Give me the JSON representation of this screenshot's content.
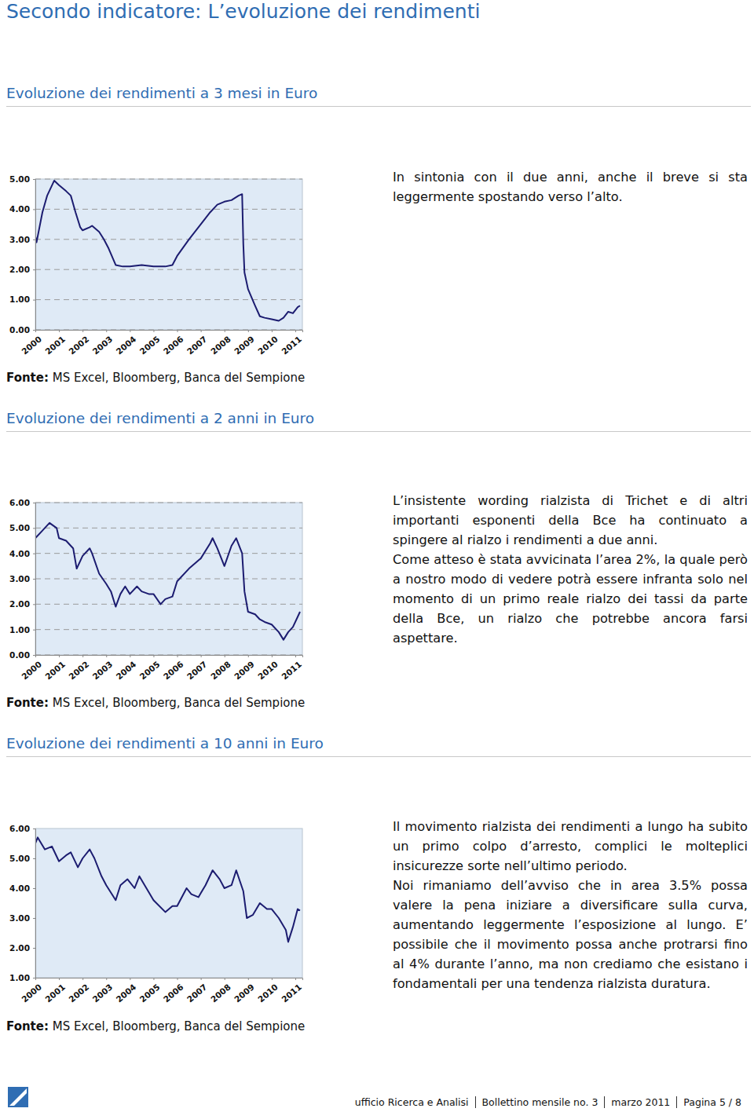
{
  "document": {
    "title": "Secondo indicatore: L’evoluzione dei rendimenti",
    "footer": [
      "ufficio Ricerca e Analisi",
      "Bollettino mensile no. 3",
      "marzo 2011",
      "Pagina 5 / 8"
    ]
  },
  "chart_data": [
    {
      "type": "line",
      "title": "Evoluzione dei rendimenti a 3 mesi in Euro",
      "source_label": "Fonte:",
      "source": "MS Excel, Bloomberg, Banca del Sempione",
      "commentary": [
        "In sintonia con il due anni, anche il breve si sta leggermente spostando verso l’alto."
      ],
      "color": "#1c1c70",
      "grid": true,
      "x": [
        2000.0,
        2000.05,
        2000.3,
        2000.5,
        2000.8,
        2001.0,
        2001.3,
        2001.5,
        2001.7,
        2001.9,
        2002.0,
        2002.3,
        2002.4,
        2002.7,
        2002.9,
        2003.1,
        2003.4,
        2003.7,
        2004.0,
        2004.5,
        2005.0,
        2005.5,
        2005.8,
        2006.0,
        2006.5,
        2007.0,
        2007.4,
        2007.7,
        2008.0,
        2008.3,
        2008.6,
        2008.75,
        2008.8,
        2008.85,
        2009.0,
        2009.3,
        2009.5,
        2009.7,
        2010.0,
        2010.3,
        2010.5,
        2010.7,
        2010.9,
        2011.1,
        2011.2
      ],
      "values": [
        3.1,
        2.9,
        3.9,
        4.45,
        4.95,
        4.8,
        4.6,
        4.45,
        3.9,
        3.4,
        3.3,
        3.4,
        3.45,
        3.25,
        3.0,
        2.7,
        2.15,
        2.1,
        2.1,
        2.15,
        2.1,
        2.1,
        2.15,
        2.45,
        3.0,
        3.5,
        3.9,
        4.15,
        4.25,
        4.3,
        4.45,
        4.5,
        2.85,
        1.9,
        1.35,
        0.8,
        0.45,
        0.4,
        0.35,
        0.3,
        0.4,
        0.6,
        0.55,
        0.75,
        0.8
      ],
      "xlim": [
        2000,
        2011.3
      ],
      "xticks": [
        2000,
        2001,
        2002,
        2003,
        2004,
        2005,
        2006,
        2007,
        2008,
        2009,
        2010,
        2011
      ],
      "ylim": [
        0,
        5
      ],
      "yticks": [
        {
          "value": 0,
          "label": "0.00"
        },
        {
          "value": 1,
          "label": "1.00"
        },
        {
          "value": 2,
          "label": "2.00"
        },
        {
          "value": 3,
          "label": "3.00"
        },
        {
          "value": 4,
          "label": "4.00"
        },
        {
          "value": 5,
          "label": "5.00"
        }
      ]
    },
    {
      "type": "line",
      "title": "Evoluzione dei rendimenti a 2 anni in Euro",
      "source_label": "Fonte:",
      "source": "MS Excel, Bloomberg, Banca del Sempione",
      "commentary": [
        "L’insistente wording rialzista di Trichet e di altri importanti esponenti della Bce ha continuato a spingere al rialzo i rendimenti a due anni.",
        "Come atteso è stata avvicinata l’area 2%, la quale però a nostro modo di vedere potrà essere infranta solo nel momento di un primo reale rialzo dei tassi da parte della Bce, un rialzo che potrebbe ancora farsi aspettare."
      ],
      "color": "#1c1c70",
      "grid": true,
      "x": [
        2000.0,
        2000.3,
        2000.6,
        2000.9,
        2001.0,
        2001.3,
        2001.6,
        2001.75,
        2002.0,
        2002.3,
        2002.4,
        2002.7,
        2003.0,
        2003.2,
        2003.4,
        2003.6,
        2003.8,
        2004.0,
        2004.3,
        2004.5,
        2004.8,
        2005.0,
        2005.3,
        2005.5,
        2005.8,
        2006.0,
        2006.5,
        2007.0,
        2007.4,
        2007.5,
        2007.7,
        2008.0,
        2008.3,
        2008.5,
        2008.75,
        2008.85,
        2009.0,
        2009.3,
        2009.5,
        2009.7,
        2010.0,
        2010.3,
        2010.5,
        2010.7,
        2010.9,
        2011.1,
        2011.2
      ],
      "values": [
        4.6,
        4.9,
        5.2,
        5.0,
        4.6,
        4.5,
        4.2,
        3.4,
        3.9,
        4.2,
        4.0,
        3.2,
        2.8,
        2.5,
        1.9,
        2.4,
        2.7,
        2.4,
        2.7,
        2.5,
        2.4,
        2.4,
        2.0,
        2.2,
        2.3,
        2.9,
        3.4,
        3.8,
        4.4,
        4.6,
        4.2,
        3.5,
        4.3,
        4.6,
        4.0,
        2.5,
        1.7,
        1.6,
        1.4,
        1.3,
        1.2,
        0.9,
        0.6,
        0.9,
        1.1,
        1.5,
        1.7
      ],
      "xlim": [
        2000,
        2011.3
      ],
      "xticks": [
        2000,
        2001,
        2002,
        2003,
        2004,
        2005,
        2006,
        2007,
        2008,
        2009,
        2010,
        2011
      ],
      "ylim": [
        0,
        6
      ],
      "yticks": [
        {
          "value": 0,
          "label": "0.00"
        },
        {
          "value": 1,
          "label": "1.00"
        },
        {
          "value": 2,
          "label": "2.00"
        },
        {
          "value": 3,
          "label": "3.00"
        },
        {
          "value": 4,
          "label": "4.00"
        },
        {
          "value": 5,
          "label": "5.00"
        },
        {
          "value": 6,
          "label": "6.00"
        }
      ]
    },
    {
      "type": "line",
      "title": "Evoluzione dei rendimenti a 10 anni in Euro",
      "source_label": "Fonte:",
      "source": "MS Excel, Bloomberg, Banca del Sempione",
      "commentary": [
        "Il movimento rialzista dei rendimenti a lungo ha subito un primo colpo d’arresto, complici le molteplici insicurezze sorte nell’ultimo periodo.",
        "Noi rimaniamo dell’avviso che in area 3.5% possa valere la pena iniziare a diversificare sulla curva, aumentando leggermente l’esposizione al lungo. E’ possibile che il movimento possa anche protrarsi fino al 4% durante l’anno, ma non crediamo che esistano i fondamentali per una tendenza rialzista duratura."
      ],
      "color": "#1c1c70",
      "grid": false,
      "x": [
        2000.0,
        2000.1,
        2000.4,
        2000.7,
        2001.0,
        2001.3,
        2001.5,
        2001.8,
        2002.0,
        2002.3,
        2002.5,
        2002.8,
        2003.0,
        2003.4,
        2003.6,
        2003.9,
        2004.2,
        2004.4,
        2004.7,
        2005.0,
        2005.5,
        2005.8,
        2006.0,
        2006.4,
        2006.6,
        2006.9,
        2007.2,
        2007.5,
        2007.8,
        2008.0,
        2008.3,
        2008.5,
        2008.8,
        2008.95,
        2009.2,
        2009.5,
        2009.8,
        2010.0,
        2010.3,
        2010.6,
        2010.7,
        2010.9,
        2011.0,
        2011.1,
        2011.2
      ],
      "values": [
        5.5,
        5.7,
        5.3,
        5.4,
        4.9,
        5.1,
        5.2,
        4.7,
        5.0,
        5.3,
        5.0,
        4.4,
        4.1,
        3.6,
        4.1,
        4.3,
        4.0,
        4.4,
        4.0,
        3.6,
        3.2,
        3.4,
        3.4,
        4.0,
        3.8,
        3.7,
        4.1,
        4.6,
        4.3,
        4.0,
        4.1,
        4.6,
        3.9,
        3.0,
        3.1,
        3.5,
        3.3,
        3.3,
        3.0,
        2.6,
        2.2,
        2.7,
        3.0,
        3.3,
        3.25
      ],
      "xlim": [
        2000,
        2011.3
      ],
      "xticks": [
        2000,
        2001,
        2002,
        2003,
        2004,
        2005,
        2006,
        2007,
        2008,
        2009,
        2010,
        2011
      ],
      "ylim": [
        1,
        6
      ],
      "yticks": [
        {
          "value": 1,
          "label": "1.00"
        },
        {
          "value": 2,
          "label": "2.00"
        },
        {
          "value": 3,
          "label": "3.00"
        },
        {
          "value": 4,
          "label": "4.00"
        },
        {
          "value": 5,
          "label": "5.00"
        },
        {
          "value": 6,
          "label": "6.00"
        }
      ]
    }
  ]
}
